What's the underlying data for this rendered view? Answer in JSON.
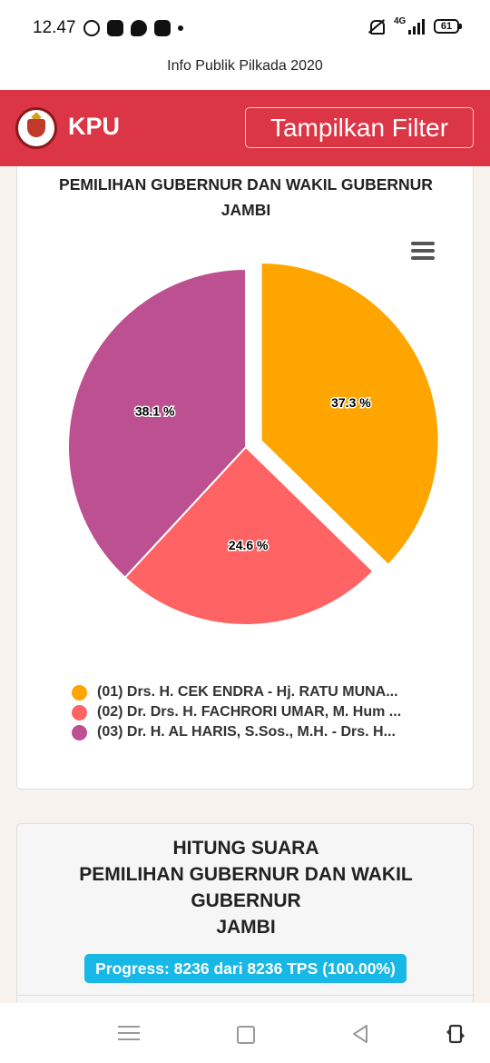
{
  "status_bar": {
    "time": "12.47",
    "network": "4G",
    "battery": "61",
    "icons": [
      "whatsapp-icon",
      "app-icon",
      "messenger-icon",
      "app-icon",
      "dot-icon",
      "mute-icon",
      "signal-icon",
      "battery-icon"
    ]
  },
  "browser": {
    "title": "Info Publik Pilkada 2020"
  },
  "header": {
    "brand": "KPU",
    "filter_button": "Tampilkan Filter",
    "color": "#dc3545"
  },
  "pie_card": {
    "title_line1": "PEMILIHAN GUBERNUR DAN WAKIL GUBERNUR",
    "title_line2": "JAMBI",
    "menu_icon": "hamburger-icon"
  },
  "chart_data": {
    "type": "pie",
    "title": "PEMILIHAN GUBERNUR DAN WAKIL GUBERNUR JAMBI",
    "labels": [
      "(01) Drs. H. CEK ENDRA - Hj. RATU MUNA...",
      "(02) Dr. Drs. H. FACHRORI UMAR, M. Hum ...",
      "(03) Dr. H. AL HARIS, S.Sos., M.H. - Drs. H..."
    ],
    "values": [
      37.3,
      24.6,
      38.1
    ],
    "value_labels": [
      "37.3 %",
      "24.6 %",
      "38.1 %"
    ],
    "colors": [
      "#ffa500",
      "#ff6363",
      "#bc5090"
    ],
    "exploded_slice": 0,
    "legend_position": "bottom"
  },
  "count_card": {
    "title_lines": [
      "HITUNG SUARA",
      "PEMILIHAN GUBERNUR DAN WAKIL",
      "GUBERNUR",
      "JAMBI"
    ],
    "progress": "Progress: 8236 dari 8236 TPS (100.00%)"
  },
  "nav_bar": {
    "icons": [
      "recent-apps-icon",
      "home-icon",
      "back-icon",
      "rotate-icon"
    ]
  }
}
